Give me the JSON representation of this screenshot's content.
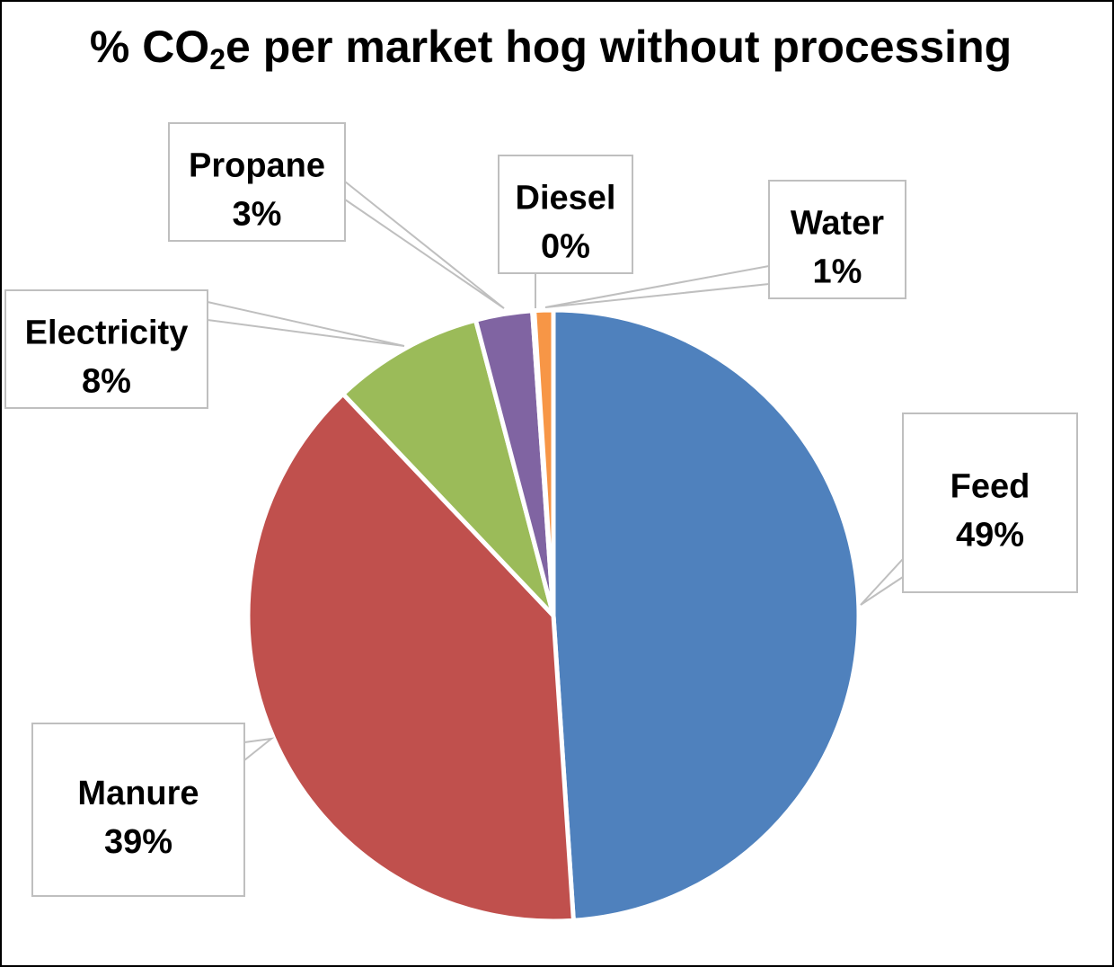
{
  "chart_data": {
    "type": "pie",
    "title": {
      "prefix": "% CO",
      "subscript": "2",
      "suffix": "e per market hog without processing"
    },
    "slices": [
      {
        "name": "Feed",
        "value": 49,
        "label": "49%",
        "color": "#4F81BD"
      },
      {
        "name": "Manure",
        "value": 39,
        "label": "39%",
        "color": "#C0504D"
      },
      {
        "name": "Electricity",
        "value": 8,
        "label": "8%",
        "color": "#9BBB59"
      },
      {
        "name": "Propane",
        "value": 3,
        "label": "3%",
        "color": "#8064A2"
      },
      {
        "name": "Diesel",
        "value": 0.1,
        "label": "0%",
        "color": "#4BACC6"
      },
      {
        "name": "Water",
        "value": 1,
        "label": "1%",
        "color": "#F79646"
      }
    ]
  }
}
